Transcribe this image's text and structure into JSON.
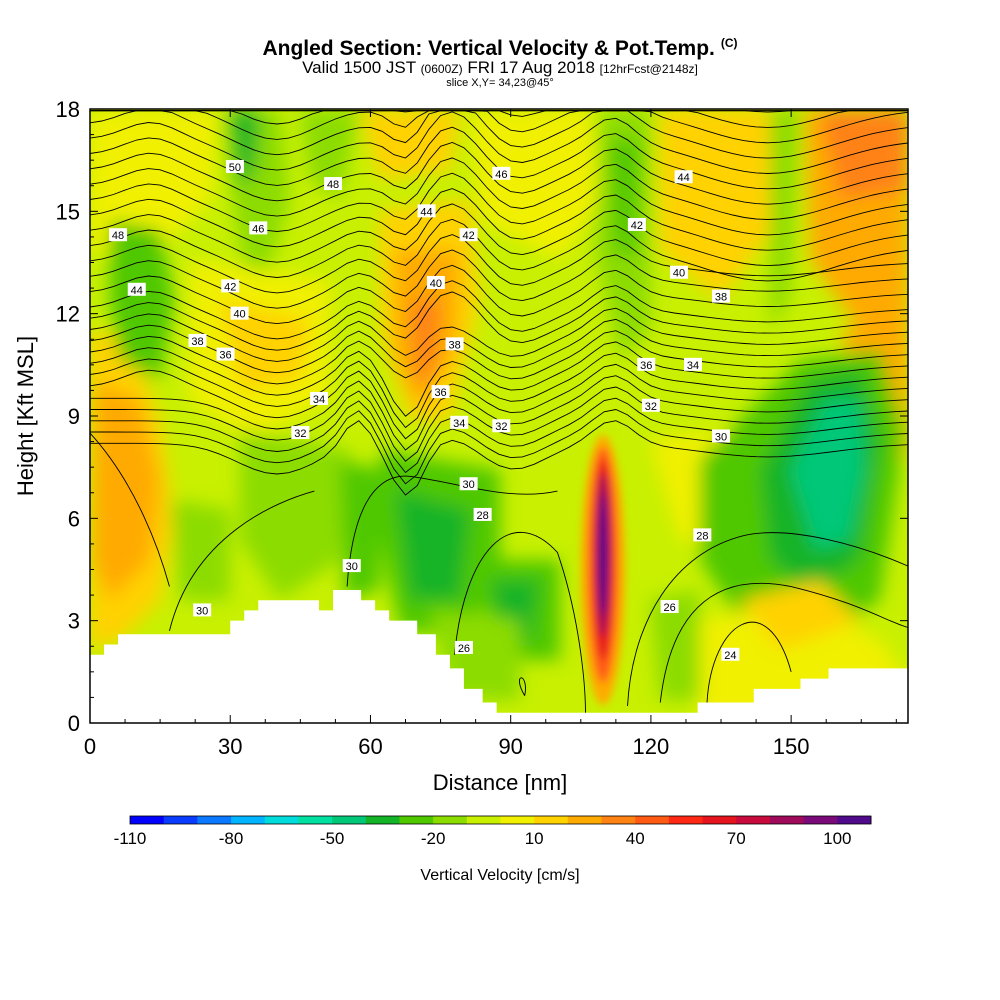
{
  "title": {
    "main": "Angled Section: Vertical Velocity & Pot.Temp.",
    "copyright": "(C)",
    "valid_prefix": "Valid 1500 JST",
    "valid_utc": "(0600Z)",
    "valid_date": "FRI 17 Aug 2018",
    "forecast": "[12hrFcst@2148z]",
    "slice": "slice X,Y= 34,23@45°"
  },
  "chart_data": {
    "type": "heatmap",
    "xlabel": "Distance [nm]",
    "ylabel": "Height [Kft MSL]",
    "xlim": [
      0,
      175
    ],
    "ylim": [
      0,
      18
    ],
    "xticks": [
      0,
      30,
      60,
      90,
      120,
      150
    ],
    "yticks": [
      0,
      3,
      6,
      9,
      12,
      15,
      18
    ],
    "colorbar": {
      "label": "Vertical Velocity [cm/s]",
      "min": -110,
      "max": 110,
      "step": 10,
      "tick_values": [
        -110,
        -80,
        -50,
        -20,
        10,
        40,
        70,
        100
      ],
      "colors": [
        "#0000ff",
        "#0a3cff",
        "#0a78ff",
        "#00b4ff",
        "#00dcdc",
        "#00e0a0",
        "#00c878",
        "#14b428",
        "#50c800",
        "#8cdc00",
        "#c8f000",
        "#f0f000",
        "#ffd200",
        "#ffaa00",
        "#ff8214",
        "#ff5a14",
        "#ff2814",
        "#e6141e",
        "#c80a3c",
        "#a00a5a",
        "#7a0a7a",
        "#500a8c"
      ]
    },
    "features": {
      "updraft_max": {
        "x": 110,
        "height": 5,
        "value": 110
      },
      "downdraft_min": {
        "x": 158,
        "height": 7.8,
        "value": -60
      }
    },
    "terrain": [
      [
        0,
        2
      ],
      [
        3,
        2
      ],
      [
        3,
        2.3
      ],
      [
        6,
        2.3
      ],
      [
        6,
        2.6
      ],
      [
        30,
        2.6
      ],
      [
        30,
        3
      ],
      [
        33,
        3
      ],
      [
        33,
        3.3
      ],
      [
        36,
        3.3
      ],
      [
        36,
        3.6
      ],
      [
        49,
        3.6
      ],
      [
        49,
        3.3
      ],
      [
        52,
        3.3
      ],
      [
        52,
        3.9
      ],
      [
        58,
        3.9
      ],
      [
        58,
        3.6
      ],
      [
        61,
        3.6
      ],
      [
        61,
        3.3
      ],
      [
        64,
        3.3
      ],
      [
        64,
        3
      ],
      [
        70,
        3
      ],
      [
        70,
        2.6
      ],
      [
        74,
        2.6
      ],
      [
        74,
        2
      ],
      [
        77,
        2
      ],
      [
        77,
        1.6
      ],
      [
        80,
        1.6
      ],
      [
        80,
        1
      ],
      [
        84,
        1
      ],
      [
        84,
        0.6
      ],
      [
        87,
        0.6
      ],
      [
        87,
        0.3
      ],
      [
        130,
        0.3
      ],
      [
        130,
        0.6
      ],
      [
        142,
        0.6
      ],
      [
        142,
        1
      ],
      [
        152,
        1
      ],
      [
        152,
        1.3
      ],
      [
        158,
        1.3
      ],
      [
        158,
        1.6
      ],
      [
        175,
        1.6
      ]
    ],
    "isentropes": {
      "units": "K-offset (°C labels)",
      "labels": [
        {
          "text": "50",
          "x": 31,
          "y": 16.3
        },
        {
          "text": "48",
          "x": 52,
          "y": 15.8
        },
        {
          "text": "46",
          "x": 88,
          "y": 16.1
        },
        {
          "text": "44",
          "x": 127,
          "y": 16
        },
        {
          "text": "48",
          "x": 6,
          "y": 14.3
        },
        {
          "text": "46",
          "x": 36,
          "y": 14.5
        },
        {
          "text": "44",
          "x": 72,
          "y": 15
        },
        {
          "text": "42",
          "x": 81,
          "y": 14.3
        },
        {
          "text": "42",
          "x": 117,
          "y": 14.6
        },
        {
          "text": "44",
          "x": 10,
          "y": 12.7
        },
        {
          "text": "42",
          "x": 30,
          "y": 12.8
        },
        {
          "text": "40",
          "x": 32,
          "y": 12
        },
        {
          "text": "40",
          "x": 74,
          "y": 12.9
        },
        {
          "text": "40",
          "x": 126,
          "y": 13.2
        },
        {
          "text": "38",
          "x": 135,
          "y": 12.5
        },
        {
          "text": "38",
          "x": 23,
          "y": 11.2
        },
        {
          "text": "36",
          "x": 29,
          "y": 10.8
        },
        {
          "text": "38",
          "x": 78,
          "y": 11.1
        },
        {
          "text": "36",
          "x": 119,
          "y": 10.5
        },
        {
          "text": "34",
          "x": 129,
          "y": 10.5
        },
        {
          "text": "34",
          "x": 49,
          "y": 9.5
        },
        {
          "text": "36",
          "x": 75,
          "y": 9.7
        },
        {
          "text": "32",
          "x": 120,
          "y": 9.3
        },
        {
          "text": "34",
          "x": 79,
          "y": 8.8
        },
        {
          "text": "32",
          "x": 88,
          "y": 8.7
        },
        {
          "text": "32",
          "x": 45,
          "y": 8.5
        },
        {
          "text": "30",
          "x": 135,
          "y": 8.4
        },
        {
          "text": "30",
          "x": 81,
          "y": 7
        },
        {
          "text": "28",
          "x": 84,
          "y": 6.1
        },
        {
          "text": "28",
          "x": 131,
          "y": 5.5
        },
        {
          "text": "30",
          "x": 56,
          "y": 4.6
        },
        {
          "text": "26",
          "x": 124,
          "y": 3.4
        },
        {
          "text": "30",
          "x": 24,
          "y": 3.3
        },
        {
          "text": "26",
          "x": 80,
          "y": 2.2
        },
        {
          "text": "24",
          "x": 137,
          "y": 2
        }
      ]
    }
  }
}
